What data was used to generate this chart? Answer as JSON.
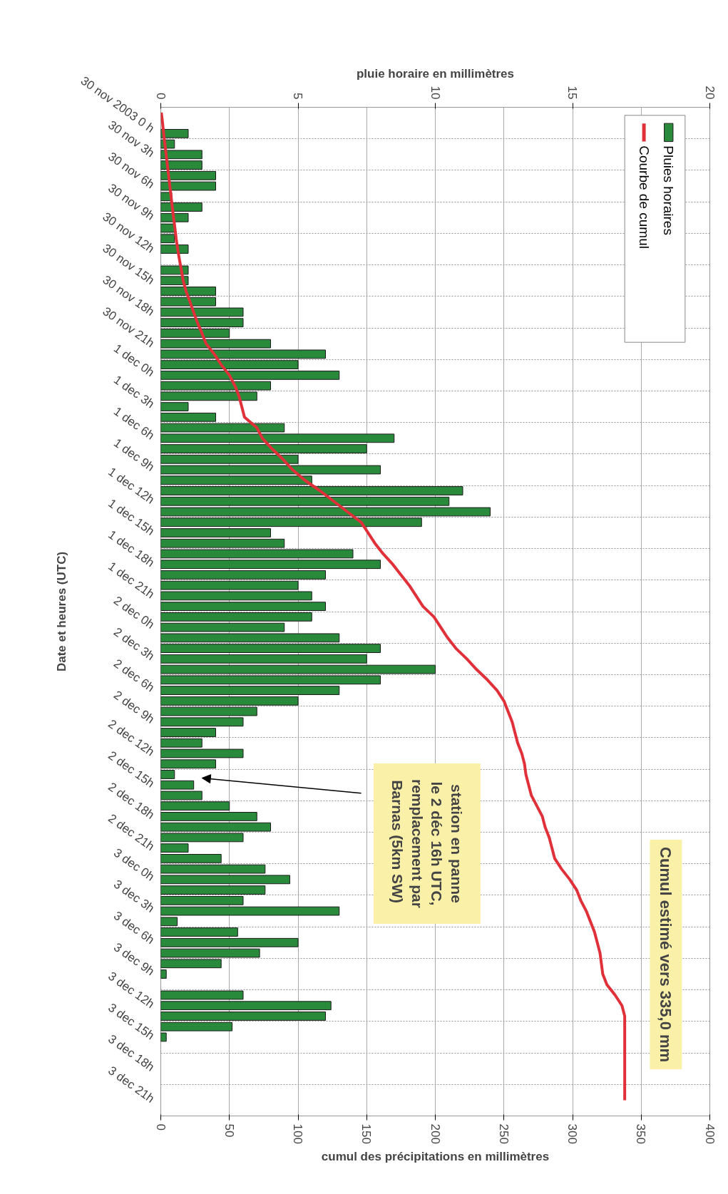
{
  "chart_data": {
    "type": "bar",
    "orientation": "horizontal",
    "x2label": "pluie horaire en millimètres",
    "xlabel": "cumul des précipitations en millimètres",
    "ylabel": "Date et heures (UTC)",
    "xlim": [
      0,
      400
    ],
    "xticks": [
      0,
      50,
      100,
      150,
      200,
      250,
      300,
      350,
      400
    ],
    "x2lim": [
      0,
      20
    ],
    "x2ticks": [
      0,
      5,
      10,
      15,
      20
    ],
    "categories": [
      "30 nov 2003 0 h",
      null,
      null,
      "30 nov 3h",
      null,
      null,
      "30 nov 6h",
      null,
      null,
      "30 nov 9h",
      null,
      null,
      "30 nov 12h",
      null,
      null,
      "30 nov 15h",
      null,
      null,
      "30 nov 18h",
      null,
      null,
      "30 nov 21h",
      null,
      null,
      "1 dec 0h",
      null,
      null,
      "1 dec 3h",
      null,
      null,
      "1 dec 6h",
      null,
      null,
      "1 dec 9h",
      null,
      null,
      "1 dec 12h",
      null,
      null,
      "1 dec 15h",
      null,
      null,
      "1 dec 18h",
      null,
      null,
      "1 dec 21h",
      null,
      null,
      "2 dec 0h",
      null,
      null,
      "2 dec 3h",
      null,
      null,
      "2 dec 6h",
      null,
      null,
      "2 dec 9h",
      null,
      null,
      "2 dec 12h",
      null,
      null,
      "2 dec 15h",
      null,
      null,
      "2 dec 18h",
      null,
      null,
      "2 dec 21h",
      null,
      null,
      "3 dec 0h",
      null,
      null,
      "3 dec 3h",
      null,
      null,
      "3 dec 6h",
      null,
      null,
      "3 dec 9h",
      null,
      null,
      "3 dec 12h",
      null,
      null,
      "3 dec 15h",
      null,
      null,
      "3 dec 18h",
      null,
      null,
      "3 dec 21h",
      null,
      null
    ],
    "grid": true,
    "legend": "top right",
    "series": [
      {
        "name": "Pluies horaires",
        "axis": "x2",
        "color": "#2a8a3c",
        "values": [
          null,
          null,
          1.0,
          0.5,
          1.5,
          1.5,
          2.0,
          2.0,
          0.4,
          1.5,
          1.0,
          0.5,
          0.5,
          1.0,
          null,
          1.0,
          1.0,
          2.0,
          2.0,
          3.0,
          3.0,
          2.5,
          4.0,
          6.0,
          5.0,
          6.5,
          4.0,
          3.5,
          1.0,
          2.0,
          4.5,
          8.5,
          7.5,
          5.0,
          8.0,
          5.5,
          11.0,
          10.5,
          12.0,
          9.5,
          4.0,
          4.5,
          7.0,
          8.0,
          6.0,
          5.0,
          5.5,
          6.0,
          5.5,
          4.5,
          6.5,
          8.0,
          7.5,
          10.0,
          8.0,
          6.5,
          5.0,
          3.5,
          3.0,
          2.0,
          1.5,
          3.0,
          2.0,
          0.5,
          1.2,
          1.5,
          2.5,
          3.5,
          4.0,
          3.0,
          1.0,
          2.2,
          3.8,
          4.7,
          3.8,
          3.0,
          6.5,
          0.6,
          2.8,
          5.0,
          3.6,
          2.2,
          0.2,
          null,
          3.0,
          6.2,
          6.0,
          2.6,
          0.2,
          null,
          null,
          null,
          null,
          null,
          null,
          null
        ]
      },
      {
        "name": "Courbe de cumul",
        "type": "line",
        "color": "#e0303a",
        "values": [
          0.4,
          1.3,
          2.1,
          3,
          3.9,
          4.8,
          5.7,
          6.6,
          7.5,
          8.4,
          9.3,
          10.3,
          11.2,
          12.3,
          13.6,
          15,
          16.3,
          18.4,
          21.2,
          23.9,
          26.7,
          30,
          33,
          39,
          44,
          50,
          54,
          57,
          59,
          61,
          70,
          74,
          81,
          89,
          96,
          105,
          116,
          126,
          136,
          146,
          151,
          156,
          162,
          169,
          175,
          181,
          186,
          191,
          199,
          204,
          209,
          215,
          223,
          230,
          238,
          245,
          250,
          253,
          256,
          258,
          260,
          263,
          265,
          266,
          268,
          270,
          274,
          278,
          280,
          283,
          285,
          287,
          292,
          298,
          303,
          306,
          310,
          313,
          316,
          318,
          320,
          321,
          322,
          325,
          331,
          336,
          338,
          338,
          338,
          338,
          338,
          338,
          338,
          338,
          338,
          null
        ]
      }
    ],
    "annotations": [
      "station en panne\nle 2 déc 16h UTC,\nremplacement par\nBarnas (5km  SW)",
      "Cumul estimé vers 335,0 mm"
    ]
  }
}
